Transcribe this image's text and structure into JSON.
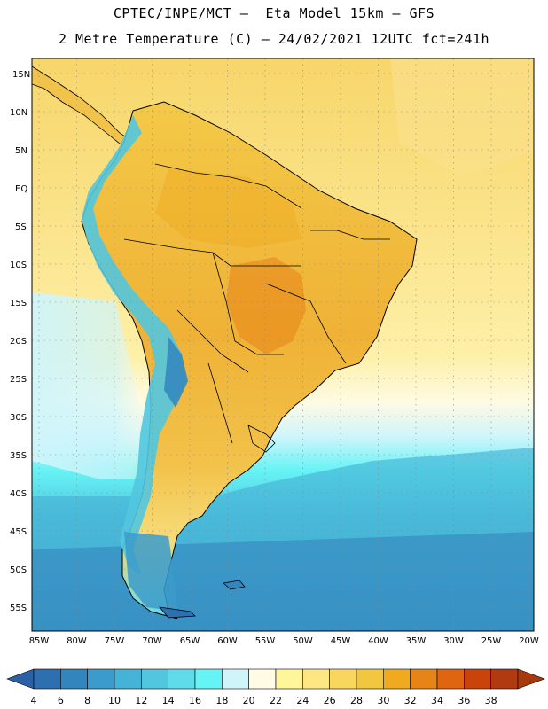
{
  "title": {
    "line1": "CPTEC/INPE/MCT –  Eta Model 15km – GFS",
    "line2": "2 Metre Temperature (C) – 24/02/2021 12UTC fct=241h"
  },
  "map": {
    "lat_ticks": [
      "15N",
      "10N",
      "5N",
      "EQ",
      "5S",
      "10S",
      "15S",
      "20S",
      "25S",
      "30S",
      "35S",
      "40S",
      "45S",
      "50S",
      "55S"
    ],
    "lon_ticks": [
      "85W",
      "80W",
      "75W",
      "70W",
      "65W",
      "60W",
      "55W",
      "50W",
      "45W",
      "40W",
      "35W",
      "30W",
      "25W",
      "20W"
    ],
    "lat_range": [
      17.5,
      -58.5
    ],
    "lon_range": [
      -86,
      -20
    ]
  },
  "colorbar": {
    "levels": [
      "4",
      "6",
      "8",
      "10",
      "12",
      "14",
      "16",
      "18",
      "20",
      "22",
      "24",
      "26",
      "28",
      "30",
      "32",
      "34",
      "36",
      "38"
    ],
    "colors": [
      "#2e6fb0",
      "#3385bd",
      "#3b9bca",
      "#45b2d6",
      "#52c6df",
      "#5fdbea",
      "#66f3f5",
      "#cff5fb",
      "#fffbe4",
      "#fff59a",
      "#fde784",
      "#f9d65e",
      "#f3c640",
      "#efaa20",
      "#e78418",
      "#e06510",
      "#c9440b",
      "#b13a10"
    ],
    "under_color": "#2b5fa6",
    "over_color": "#a8380e"
  }
}
